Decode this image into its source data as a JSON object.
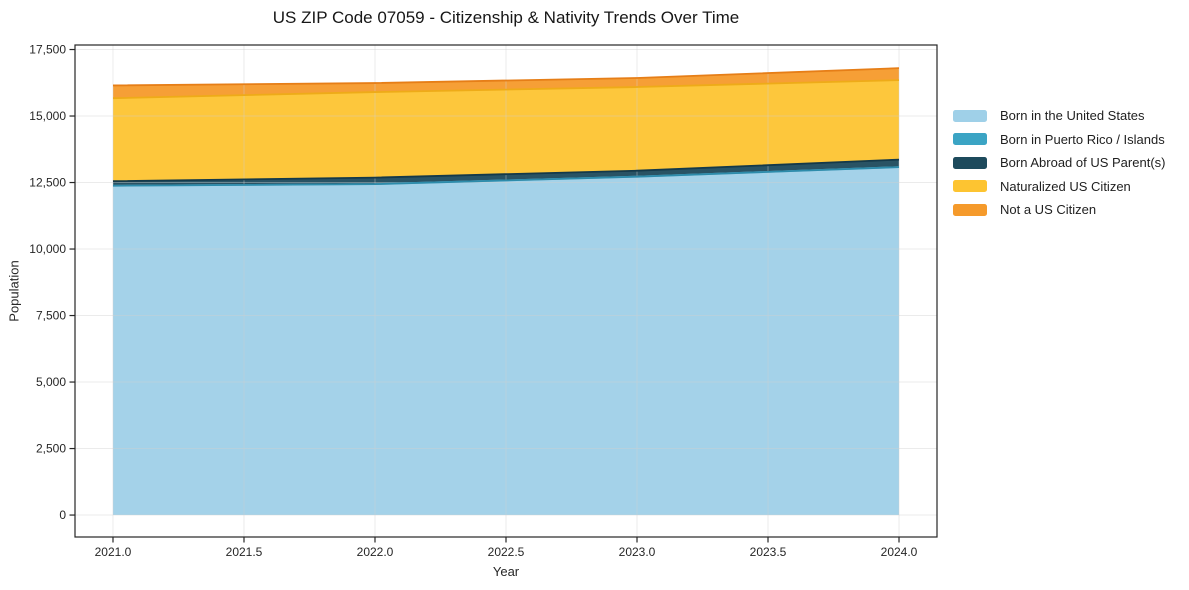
{
  "chart": {
    "title": "US ZIP Code 07059 - Citizenship & Nativity Trends Over Time",
    "xlabel": "Year",
    "ylabel": "Population"
  },
  "chart_data": {
    "type": "area",
    "stacked": true,
    "title": "US ZIP Code 07059 - Citizenship & Nativity Trends Over Time",
    "xlabel": "Year",
    "ylabel": "Population",
    "grid": true,
    "legend_position": "right",
    "x": [
      2021,
      2022,
      2023,
      2024
    ],
    "series": [
      {
        "name": "Born in the United States",
        "fill": "#9fd0e8",
        "line": "#7db7d6",
        "values": [
          12380,
          12440,
          12720,
          13080
        ]
      },
      {
        "name": "Born in Puerto Rico / Islands",
        "fill": "#3ba4c4",
        "line": "#2d8cab",
        "values": [
          0,
          0,
          0,
          0
        ]
      },
      {
        "name": "Born Abroad of US Parent(s)",
        "fill": "#1d4a5c",
        "line": "#14394a",
        "values": [
          170,
          245,
          225,
          280
        ]
      },
      {
        "name": "Naturalized US Citizen",
        "fill": "#fdc431",
        "line": "#eeab18",
        "values": [
          3120,
          3215,
          3145,
          2990
        ]
      },
      {
        "name": "Not a US Citizen",
        "fill": "#f59a2b",
        "line": "#e67e17",
        "values": [
          480,
          340,
          340,
          450
        ]
      }
    ],
    "totals": [
      16150,
      16240,
      16430,
      16800
    ],
    "xlim": [
      2020.855,
      2024.145
    ],
    "ylim": [
      -825,
      17670
    ],
    "xticks": [
      2021.0,
      2021.5,
      2022.0,
      2022.5,
      2023.0,
      2023.5,
      2024.0
    ],
    "xtick_labels": [
      "2021.0",
      "2021.5",
      "2022.0",
      "2022.5",
      "2023.0",
      "2023.5",
      "2024.0"
    ],
    "yticks": [
      0,
      2500,
      5000,
      7500,
      10000,
      12500,
      15000,
      17500
    ],
    "ytick_labels": [
      "0",
      "2,500",
      "5,000",
      "7,500",
      "10,000",
      "12,500",
      "15,000",
      "17,500"
    ],
    "colors": {
      "background": "#ffffff",
      "frame": "#262626",
      "grid": "#cfcfcf",
      "tick_text": "#262626"
    }
  }
}
